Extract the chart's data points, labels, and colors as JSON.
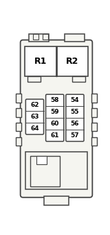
{
  "bg_color": "#ffffff",
  "body_bg": "#f5f5f0",
  "border_color": "#444444",
  "box_color": "#ffffff",
  "text_color": "#000000",
  "fig_width": 1.6,
  "fig_height": 3.39,
  "dpi": 100,
  "relay_labels": [
    "R1",
    "R2"
  ],
  "relay_fontsize": 9,
  "fuse_fontsize": 6.5,
  "groups": [
    {
      "labels": [
        "62",
        "63",
        "64"
      ],
      "col": 0
    },
    {
      "labels": [
        "58",
        "59",
        "60",
        "61"
      ],
      "col": 1
    },
    {
      "labels": [
        "54",
        "55",
        "56",
        "57"
      ],
      "col": 2
    }
  ]
}
